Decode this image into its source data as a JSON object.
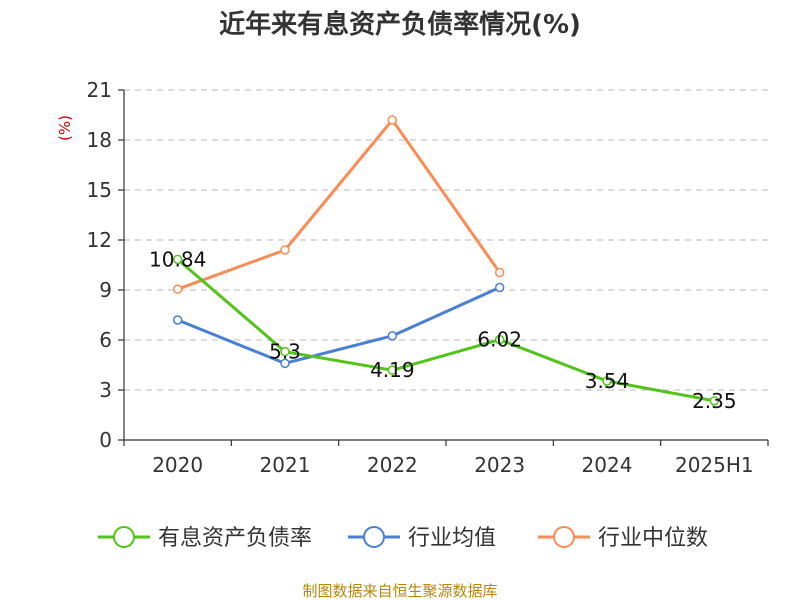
{
  "chart_data": {
    "type": "line",
    "title": "近年来有息资产负债率情况(%)",
    "ylabel": "(%)",
    "categories": [
      "2020",
      "2021",
      "2022",
      "2023",
      "2024",
      "2025H1"
    ],
    "ylim": [
      0,
      21
    ],
    "yticks": [
      0,
      3,
      6,
      9,
      12,
      15,
      18,
      21
    ],
    "grid": true,
    "legend_position": "bottom",
    "series": [
      {
        "name": "有息资产负债率",
        "color": "#52c41a",
        "values": [
          10.84,
          5.3,
          4.19,
          6.02,
          3.54,
          2.35
        ],
        "labels": [
          "10.84",
          "5.3",
          "4.19",
          "6.02",
          "3.54",
          "2.35"
        ]
      },
      {
        "name": "行业均值",
        "color": "#4a7fd4",
        "values": [
          7.2,
          4.6,
          6.25,
          9.15,
          null,
          null
        ]
      },
      {
        "name": "行业中位数",
        "color": "#fa8c55",
        "values": [
          9.05,
          11.4,
          19.2,
          10.05,
          null,
          null
        ]
      }
    ]
  },
  "source": "制图数据来自恒生聚源数据库"
}
